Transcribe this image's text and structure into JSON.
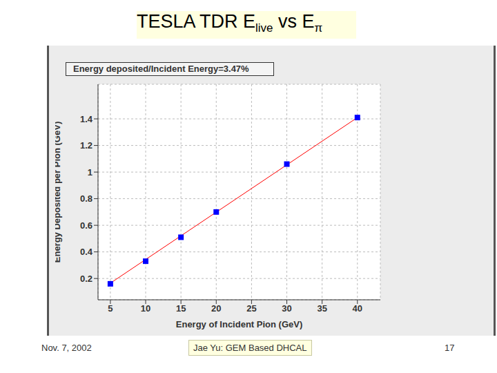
{
  "slide": {
    "title": [
      {
        "text": "TESLA TDR E"
      },
      {
        "text": "live",
        "sub": true
      },
      {
        "text": " vs E"
      },
      {
        "text": "π",
        "sub": true
      }
    ],
    "footer": {
      "left": "Nov. 7, 2002",
      "center": "Jae Yu: GEM Based DHCAL",
      "right": "17"
    }
  },
  "chart_data": {
    "type": "scatter",
    "title": "Energy deposited/Incident Energy=3.47%",
    "x_label": "Energy of Incident Pion (GeV)",
    "y_label": "Energy Deposited per Pion (GeV)",
    "x": [
      5,
      10,
      15,
      20,
      30,
      40
    ],
    "values": [
      0.16,
      0.33,
      0.51,
      0.7,
      1.06,
      1.41
    ],
    "color": "#0000ff",
    "marker": "square",
    "series": [
      {
        "type": "line",
        "color": "#ff0000",
        "x": [
          5,
          40
        ],
        "values": [
          0.165,
          1.41
        ]
      }
    ],
    "xlim": [
      3.25,
      43.25
    ],
    "ylim": [
      0.04,
      1.66
    ],
    "xticks": [
      5,
      10,
      15,
      20,
      25,
      30,
      35,
      40
    ],
    "yticks": [
      0.2,
      0.4,
      0.6,
      0.8,
      1,
      1.2,
      1.4
    ],
    "grid": true
  }
}
